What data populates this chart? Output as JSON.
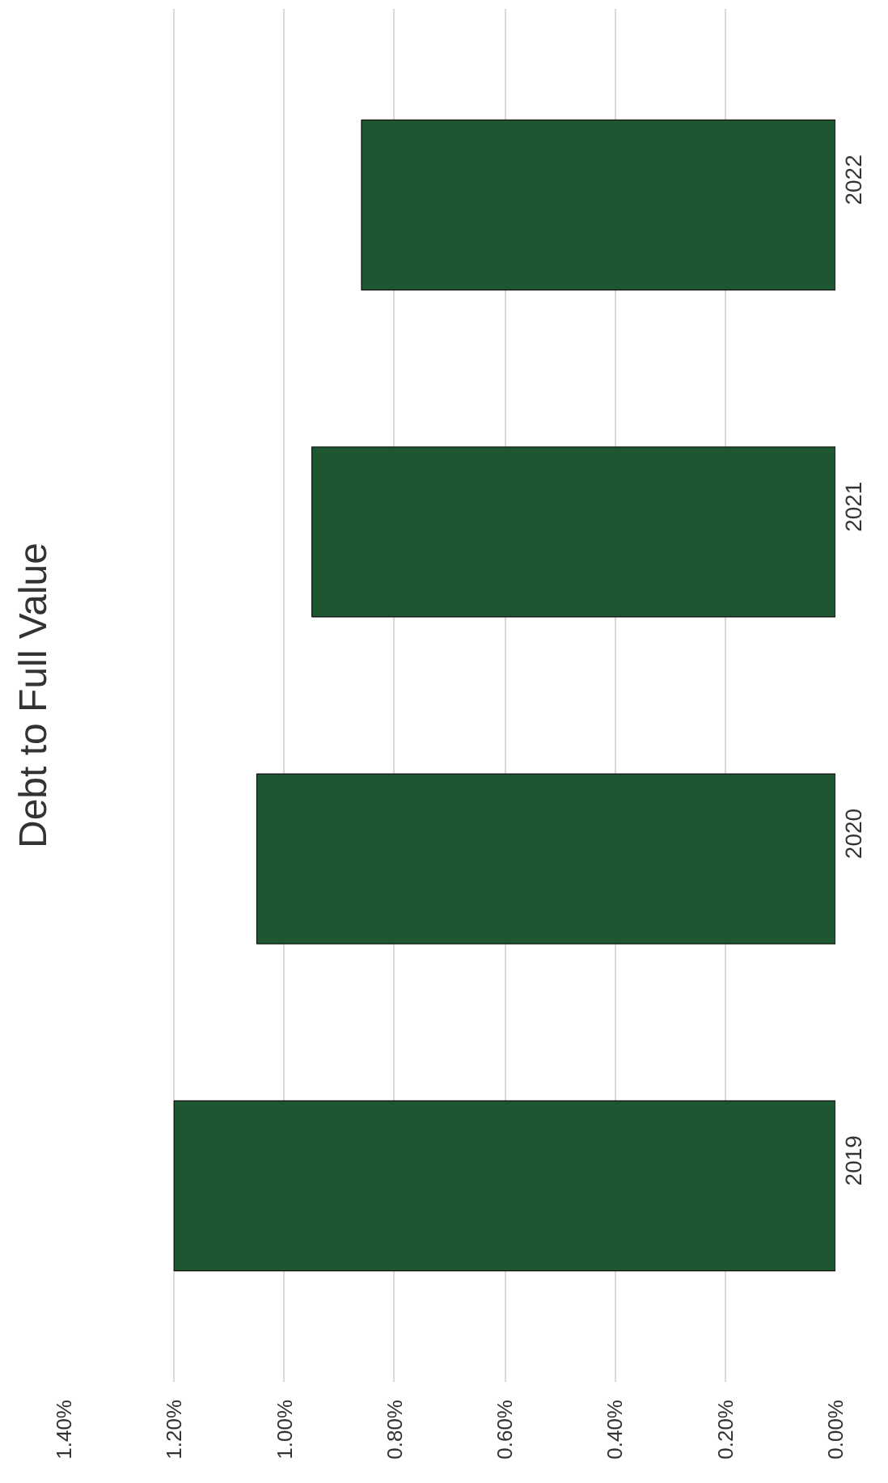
{
  "chart_data": {
    "type": "bar",
    "orientation": "horizontal",
    "title": "Debt to Full Value",
    "categories": [
      "2022",
      "2021",
      "2020",
      "2019"
    ],
    "values": [
      0.86,
      0.95,
      1.05,
      1.2
    ],
    "color": "#1e5631",
    "xlim": [
      1.4,
      0
    ],
    "xticks": [
      {
        "value": 0,
        "label": "0.00%"
      },
      {
        "value": 0.2,
        "label": "0.20%"
      },
      {
        "value": 0.4,
        "label": "0.40%"
      },
      {
        "value": 0.6,
        "label": "0.60%"
      },
      {
        "value": 0.8,
        "label": "0.80%"
      },
      {
        "value": 1.0,
        "label": "1.00%"
      },
      {
        "value": 1.2,
        "label": "1.20%"
      },
      {
        "value": 1.4,
        "label": "1.40%"
      }
    ],
    "grid": "x"
  }
}
